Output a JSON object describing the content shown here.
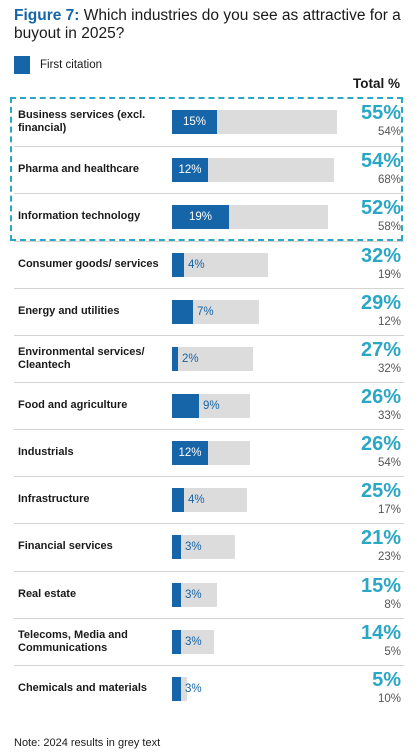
{
  "title": {
    "prefix": "Figure 7:",
    "text": " Which industries do you see as attractive for a buyout in 2025?"
  },
  "legend": {
    "label": "First citation",
    "color": "#1565a8"
  },
  "total_header": "Total %",
  "note": "Note: 2024 results in grey text",
  "colors": {
    "first_citation": "#1565a8",
    "total_bar": "#dcdcdc",
    "total_text": "#2ba7c6",
    "prior_year_text": "#555555"
  },
  "chart_data": {
    "type": "bar",
    "orientation": "horizontal",
    "categories": [
      "Business services (excl. financial)",
      "Pharma and healthcare",
      "Information technology",
      "Consumer goods/ services",
      "Energy and utilities",
      "Environmental services/ Cleantech",
      "Food and agriculture",
      "Industrials",
      "Infrastructure",
      "Financial services",
      "Real estate",
      "Telecoms, Media and Communications",
      "Chemicals and materials"
    ],
    "series": [
      {
        "name": "First citation",
        "values": [
          15,
          12,
          19,
          4,
          7,
          2,
          9,
          12,
          4,
          3,
          3,
          3,
          3
        ],
        "labels": [
          "15%",
          "12%",
          "19%",
          "4%",
          "7%",
          "2%",
          "9%",
          "12%",
          "4%",
          "3%",
          "3%",
          "3%",
          "3%"
        ]
      },
      {
        "name": "Total %",
        "values": [
          55,
          54,
          52,
          32,
          29,
          27,
          26,
          26,
          25,
          21,
          15,
          14,
          5
        ],
        "labels": [
          "55%",
          "54%",
          "52%",
          "32%",
          "29%",
          "27%",
          "26%",
          "26%",
          "25%",
          "21%",
          "15%",
          "14%",
          "5%"
        ]
      }
    ],
    "prior_year": {
      "values": [
        54,
        68,
        58,
        19,
        12,
        32,
        33,
        54,
        17,
        23,
        8,
        5,
        10
      ],
      "labels": [
        "54%",
        "68%",
        "58%",
        "19%",
        "12%",
        "32%",
        "33%",
        "54%",
        "17%",
        "23%",
        "8%",
        "5%",
        "10%"
      ]
    },
    "highlighted_categories": [
      "Business services (excl. financial)",
      "Pharma and healthcare",
      "Information technology"
    ],
    "xlim": [
      0,
      55
    ]
  }
}
